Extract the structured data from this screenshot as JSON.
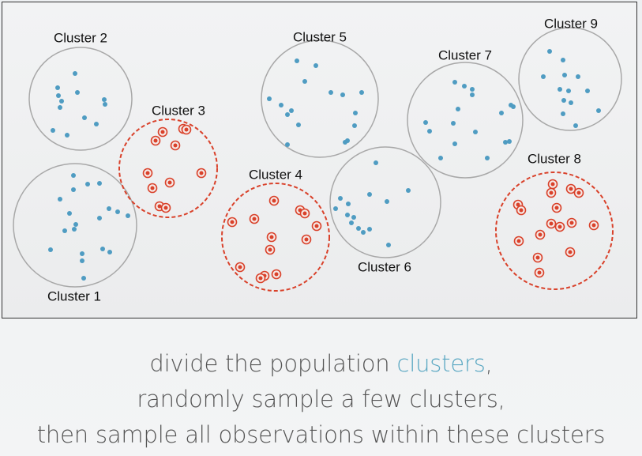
{
  "diagram": {
    "clusters": [
      {
        "id": 1,
        "label": "Cluster 1",
        "sampled": false
      },
      {
        "id": 2,
        "label": "Cluster 2",
        "sampled": false
      },
      {
        "id": 3,
        "label": "Cluster 3",
        "sampled": true
      },
      {
        "id": 4,
        "label": "Cluster 4",
        "sampled": true
      },
      {
        "id": 5,
        "label": "Cluster 5",
        "sampled": false
      },
      {
        "id": 6,
        "label": "Cluster 6",
        "sampled": false
      },
      {
        "id": 7,
        "label": "Cluster 7",
        "sampled": false
      },
      {
        "id": 8,
        "label": "Cluster 8",
        "sampled": true
      },
      {
        "id": 9,
        "label": "Cluster 9",
        "sampled": false
      }
    ]
  },
  "caption": {
    "line1_start": "divide the population ",
    "line1_highlight": "clusters",
    "line1_end": ",",
    "line2": "randomly sample a few clusters,",
    "line3": "then sample all observations within these clusters"
  },
  "colors": {
    "dot": "#4f9cc2",
    "sampled_dot": "#d9412a",
    "sampled_ring": "#d9412a",
    "cluster_border": "#a8a8a8",
    "accent": "#5aa7c2"
  }
}
